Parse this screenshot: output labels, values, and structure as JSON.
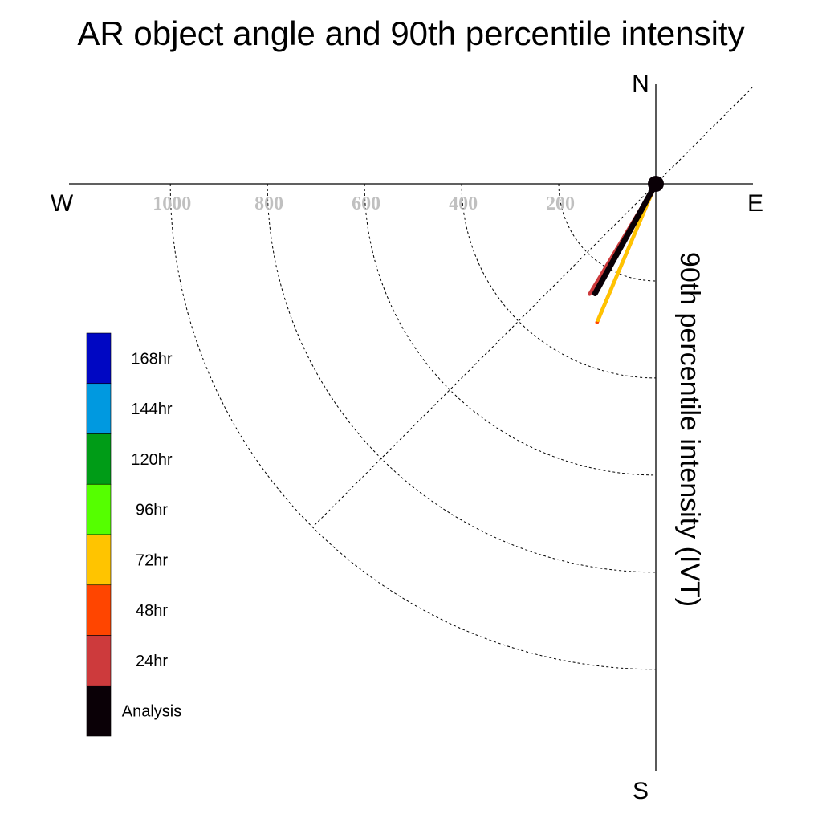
{
  "chart_data": {
    "type": "polar-vector",
    "title": "AR object angle and 90th percentile intensity",
    "ylabel": "90th percentile intensity (IVT)",
    "compass": {
      "north": "N",
      "south": "S",
      "east": "E",
      "west": "W"
    },
    "rings": [
      200,
      400,
      600,
      800,
      1000
    ],
    "ring_labels": [
      "200",
      "400",
      "600",
      "800",
      "1000"
    ],
    "diagonal_guide_angle_deg": 45,
    "series": [
      {
        "name": "24hr",
        "angle_deg": 211,
        "intensity": 265,
        "color": "#cd3a3c"
      },
      {
        "name": "48hr",
        "angle_deg": 203,
        "intensity": 310,
        "color": "#ff4500"
      },
      {
        "name": "72hr",
        "angle_deg": 203,
        "intensity": 305,
        "color": "#ffc400"
      },
      {
        "name": "Analysis",
        "angle_deg": 209,
        "intensity": 258,
        "color": "#0a0006"
      }
    ],
    "legend": [
      {
        "label": "168hr",
        "color": "#0007c3"
      },
      {
        "label": "144hr",
        "color": "#0099e0"
      },
      {
        "label": "120hr",
        "color": "#009c17"
      },
      {
        "label": "96hr",
        "color": "#55ff00"
      },
      {
        "label": "72hr",
        "color": "#ffc400"
      },
      {
        "label": "48hr",
        "color": "#ff4500"
      },
      {
        "label": "24hr",
        "color": "#cd3a3c"
      },
      {
        "label": "Analysis",
        "color": "#0a0006"
      }
    ]
  }
}
